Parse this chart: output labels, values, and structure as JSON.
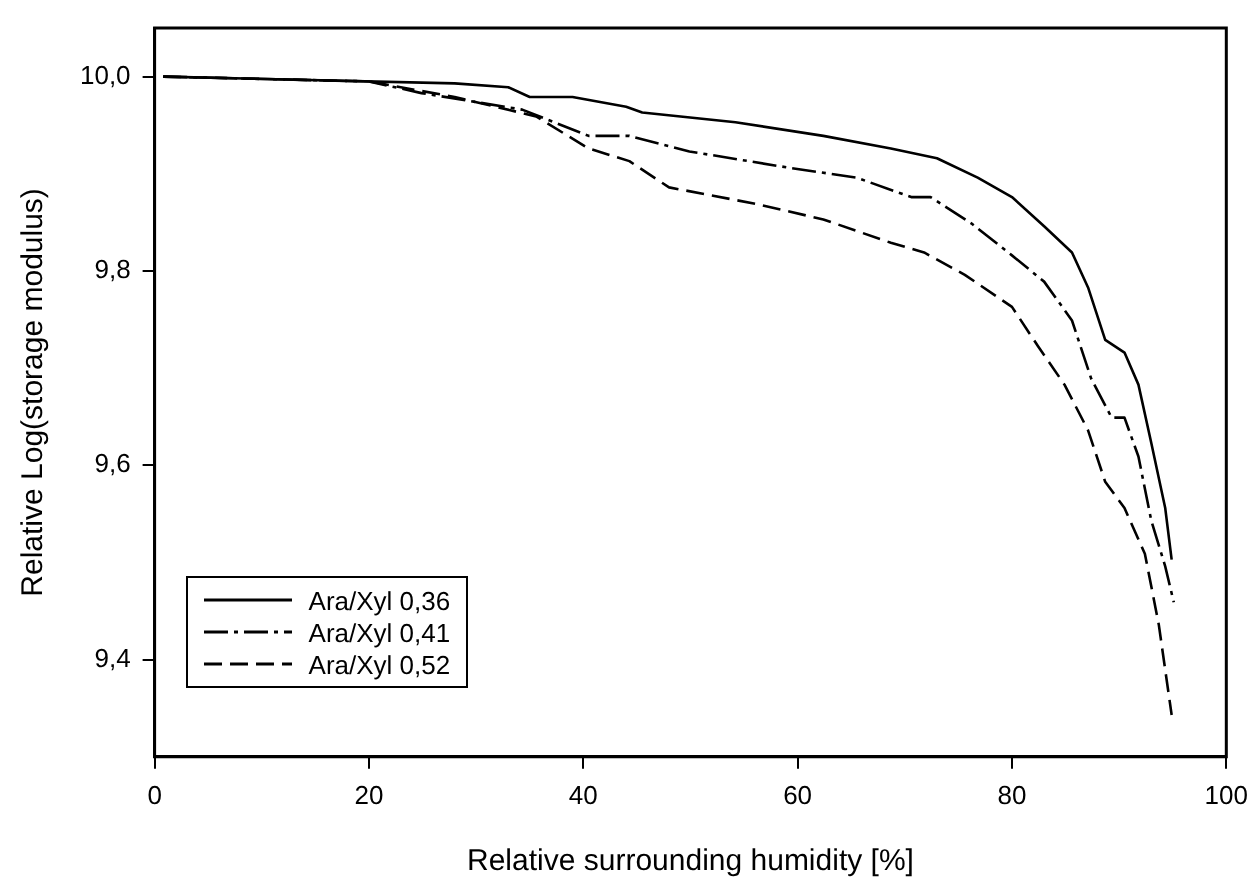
{
  "chart_data": {
    "type": "line",
    "xlabel": "Relative surrounding humidity [%]",
    "ylabel": "Relative Log(storage modulus)",
    "xlim": [
      0,
      100
    ],
    "xticks": [
      0,
      20,
      40,
      60,
      80,
      100
    ],
    "ylim": [
      9.3,
      10.05
    ],
    "yticks": [
      {
        "value": 9.4,
        "label": "9,4"
      },
      {
        "value": 9.6,
        "label": "9,6"
      },
      {
        "value": 9.8,
        "label": "9,8"
      },
      {
        "value": 10.0,
        "label": "10,0"
      }
    ],
    "grid": false,
    "legend": "bottom left",
    "marker": "none",
    "series": [
      {
        "name": "Ara/Xyl 0,36",
        "color": "#000000",
        "line_style": "solid",
        "x": [
          0.8,
          28,
          33,
          35,
          39,
          44,
          45.5,
          54.2,
          62.4,
          68.7,
          73,
          76.8,
          80,
          83,
          85.6,
          87.1,
          88.7,
          90.5,
          91.8,
          93,
          94.3,
          94.9
        ],
        "values": [
          10.0,
          9.993,
          9.989,
          9.979,
          9.979,
          9.969,
          9.963,
          9.953,
          9.939,
          9.926,
          9.916,
          9.896,
          9.876,
          9.846,
          9.819,
          9.783,
          9.729,
          9.716,
          9.683,
          9.623,
          9.556,
          9.503
        ]
      },
      {
        "name": "Ara/Xyl 0,41",
        "color": "#000000",
        "line_style": "dashdot",
        "x": [
          0.8,
          20,
          24.9,
          34.3,
          40.5,
          44.3,
          49.9,
          59.3,
          65.5,
          70.6,
          72.4,
          76.2,
          80,
          83,
          85.6,
          87.4,
          89.3,
          90.5,
          91.8,
          93,
          94.3,
          95.1
        ],
        "values": [
          10.0,
          9.995,
          9.983,
          9.966,
          9.939,
          9.939,
          9.923,
          9.906,
          9.896,
          9.876,
          9.876,
          9.849,
          9.816,
          9.789,
          9.749,
          9.689,
          9.649,
          9.649,
          9.609,
          9.543,
          9.496,
          9.459
        ]
      },
      {
        "name": "Ara/Xyl 0,52",
        "color": "#000000",
        "line_style": "dashed",
        "x": [
          0.8,
          20,
          28,
          35.6,
          40.5,
          44.3,
          48,
          56.1,
          62.4,
          68.7,
          71.8,
          75.6,
          80,
          82.4,
          84.9,
          87.1,
          88.7,
          90.5,
          92.4,
          93.7,
          94.9
        ],
        "values": [
          10.0,
          9.995,
          9.979,
          9.959,
          9.926,
          9.913,
          9.886,
          9.869,
          9.853,
          9.829,
          9.819,
          9.796,
          9.763,
          9.723,
          9.683,
          9.636,
          9.583,
          9.556,
          9.509,
          9.436,
          9.343
        ]
      }
    ]
  }
}
